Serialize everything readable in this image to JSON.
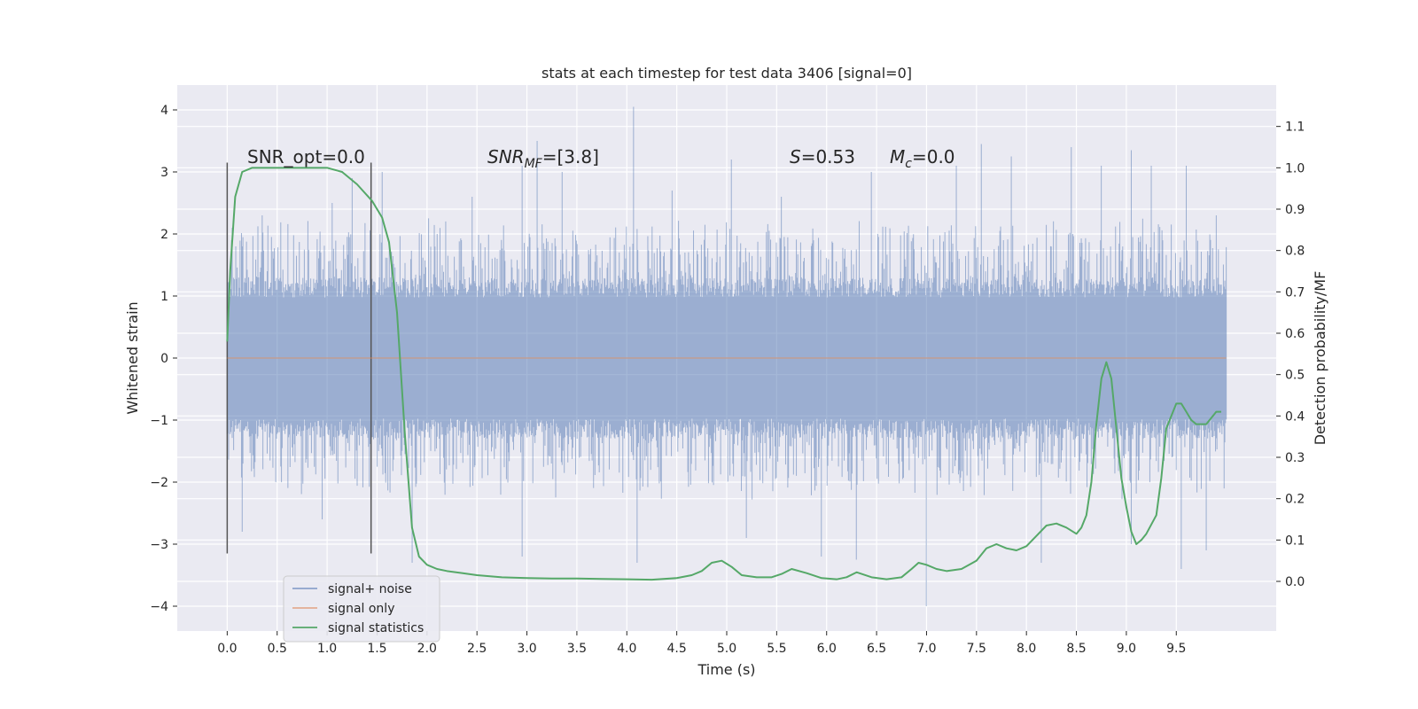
{
  "chart_data": {
    "type": "line",
    "title": "stats at each timestep for test data 3406 [signal=0]",
    "xlabel": "Time (s)",
    "ylabel": "Whitened strain",
    "y2label": "Detection probability/MF",
    "xlim": [
      -0.5,
      10.5
    ],
    "ylim": [
      -4.4,
      4.4
    ],
    "y2lim": [
      -0.12,
      1.2
    ],
    "x_ticks": [
      0.0,
      0.5,
      1.0,
      1.5,
      2.0,
      2.5,
      3.0,
      3.5,
      4.0,
      4.5,
      5.0,
      5.5,
      6.0,
      6.5,
      7.0,
      7.5,
      8.0,
      8.5,
      9.0,
      9.5
    ],
    "x_tick_labels": [
      "0.0",
      "0.5",
      "1.0",
      "1.5",
      "2.0",
      "2.5",
      "3.0",
      "3.5",
      "4.0",
      "4.5",
      "5.0",
      "5.5",
      "6.0",
      "6.5",
      "7.0",
      "7.5",
      "8.0",
      "8.5",
      "9.0",
      "9.5"
    ],
    "y_ticks": [
      -4,
      -3,
      -2,
      -1,
      0,
      1,
      2,
      3,
      4
    ],
    "y_tick_labels": [
      "−4",
      "−3",
      "−2",
      "−1",
      "0",
      "1",
      "2",
      "3",
      "4"
    ],
    "y2_ticks": [
      0.0,
      0.1,
      0.2,
      0.3,
      0.4,
      0.5,
      0.6,
      0.7,
      0.8,
      0.9,
      1.0,
      1.1
    ],
    "y2_tick_labels": [
      "0.0",
      "0.1",
      "0.2",
      "0.3",
      "0.4",
      "0.5",
      "0.6",
      "0.7",
      "0.8",
      "0.9",
      "1.0",
      "1.1"
    ],
    "grid": true,
    "legend_position": "lower-left",
    "annotations": {
      "snr_opt": "SNR_opt=0.0",
      "snr_mf_base": "SNR",
      "snr_mf_sub": "MF",
      "snr_mf_value": "=[3.8]",
      "s_label": "S",
      "s_value": "=0.53",
      "mc_base": "M",
      "mc_sub": "c",
      "mc_value": "=0.0"
    },
    "vertical_lines": [
      {
        "x": 0.0,
        "ymin": -3.15,
        "ymax": 3.15
      },
      {
        "x": 1.44,
        "ymin": -3.15,
        "ymax": 3.15
      }
    ],
    "series": [
      {
        "name": "signal+ noise",
        "axis": "left",
        "color": "#4c72b0",
        "x_start": 0.0,
        "x_end": 10.0,
        "envelope_max": 1.3,
        "peaks": [
          {
            "x": 0.05,
            "y": 2.1
          },
          {
            "x": 0.35,
            "y": 2.3
          },
          {
            "x": 1.05,
            "y": 2.5
          },
          {
            "x": 1.25,
            "y": 2.9
          },
          {
            "x": 1.55,
            "y": 3.0
          },
          {
            "x": 2.45,
            "y": 2.6
          },
          {
            "x": 2.95,
            "y": 3.1
          },
          {
            "x": 3.1,
            "y": 3.5
          },
          {
            "x": 3.35,
            "y": 3.0
          },
          {
            "x": 4.07,
            "y": 4.05
          },
          {
            "x": 4.45,
            "y": 2.7
          },
          {
            "x": 5.05,
            "y": 3.2
          },
          {
            "x": 5.55,
            "y": 2.6
          },
          {
            "x": 6.45,
            "y": 3.0
          },
          {
            "x": 7.3,
            "y": 3.1
          },
          {
            "x": 7.55,
            "y": 3.45
          },
          {
            "x": 7.85,
            "y": 3.25
          },
          {
            "x": 8.45,
            "y": 3.4
          },
          {
            "x": 8.75,
            "y": 3.1
          },
          {
            "x": 9.05,
            "y": 3.35
          },
          {
            "x": 9.25,
            "y": 3.1
          },
          {
            "x": 9.6,
            "y": 3.1
          },
          {
            "x": 9.9,
            "y": 2.3
          }
        ],
        "troughs": [
          {
            "x": 0.15,
            "y": -2.8
          },
          {
            "x": 0.95,
            "y": -2.6
          },
          {
            "x": 1.85,
            "y": -3.3
          },
          {
            "x": 2.95,
            "y": -3.2
          },
          {
            "x": 4.1,
            "y": -3.3
          },
          {
            "x": 5.2,
            "y": -2.9
          },
          {
            "x": 5.95,
            "y": -3.2
          },
          {
            "x": 6.3,
            "y": -3.25
          },
          {
            "x": 7.0,
            "y": -4.0
          },
          {
            "x": 8.15,
            "y": -3.3
          },
          {
            "x": 9.05,
            "y": -3.0
          },
          {
            "x": 9.55,
            "y": -3.4
          },
          {
            "x": 9.8,
            "y": -3.1
          }
        ]
      },
      {
        "name": "signal only",
        "axis": "left",
        "color": "#dd8452",
        "x": [
          0.0,
          10.0
        ],
        "y": [
          0.0,
          0.0
        ]
      },
      {
        "name": "signal statistics",
        "axis": "right",
        "color": "#55a868",
        "x": [
          0.0,
          0.03,
          0.08,
          0.15,
          0.25,
          0.5,
          0.75,
          1.0,
          1.15,
          1.3,
          1.45,
          1.55,
          1.62,
          1.7,
          1.78,
          1.85,
          1.92,
          2.0,
          2.1,
          2.2,
          2.35,
          2.5,
          2.75,
          3.0,
          3.25,
          3.5,
          3.75,
          4.0,
          4.25,
          4.5,
          4.65,
          4.75,
          4.85,
          4.95,
          5.05,
          5.15,
          5.3,
          5.45,
          5.55,
          5.65,
          5.8,
          5.95,
          6.1,
          6.2,
          6.3,
          6.45,
          6.6,
          6.75,
          6.85,
          6.92,
          7.0,
          7.1,
          7.2,
          7.35,
          7.5,
          7.6,
          7.7,
          7.8,
          7.9,
          8.0,
          8.1,
          8.2,
          8.3,
          8.4,
          8.5,
          8.55,
          8.6,
          8.65,
          8.7,
          8.75,
          8.8,
          8.85,
          8.9,
          8.95,
          9.0,
          9.05,
          9.1,
          9.15,
          9.2,
          9.3,
          9.35,
          9.4,
          9.5,
          9.55,
          9.6,
          9.65,
          9.7,
          9.8,
          9.9,
          9.95
        ],
        "y": [
          0.58,
          0.75,
          0.93,
          0.99,
          1.0,
          1.0,
          1.0,
          1.0,
          0.99,
          0.96,
          0.92,
          0.88,
          0.82,
          0.65,
          0.35,
          0.13,
          0.06,
          0.04,
          0.03,
          0.025,
          0.02,
          0.015,
          0.01,
          0.008,
          0.007,
          0.007,
          0.006,
          0.005,
          0.004,
          0.008,
          0.015,
          0.025,
          0.045,
          0.05,
          0.035,
          0.015,
          0.01,
          0.01,
          0.018,
          0.03,
          0.02,
          0.008,
          0.005,
          0.01,
          0.022,
          0.01,
          0.005,
          0.01,
          0.03,
          0.045,
          0.04,
          0.03,
          0.025,
          0.03,
          0.05,
          0.08,
          0.09,
          0.08,
          0.075,
          0.085,
          0.11,
          0.135,
          0.14,
          0.13,
          0.115,
          0.13,
          0.16,
          0.24,
          0.38,
          0.49,
          0.53,
          0.49,
          0.37,
          0.25,
          0.18,
          0.12,
          0.09,
          0.1,
          0.115,
          0.16,
          0.25,
          0.37,
          0.43,
          0.43,
          0.41,
          0.39,
          0.38,
          0.38,
          0.41,
          0.41
        ]
      }
    ]
  }
}
